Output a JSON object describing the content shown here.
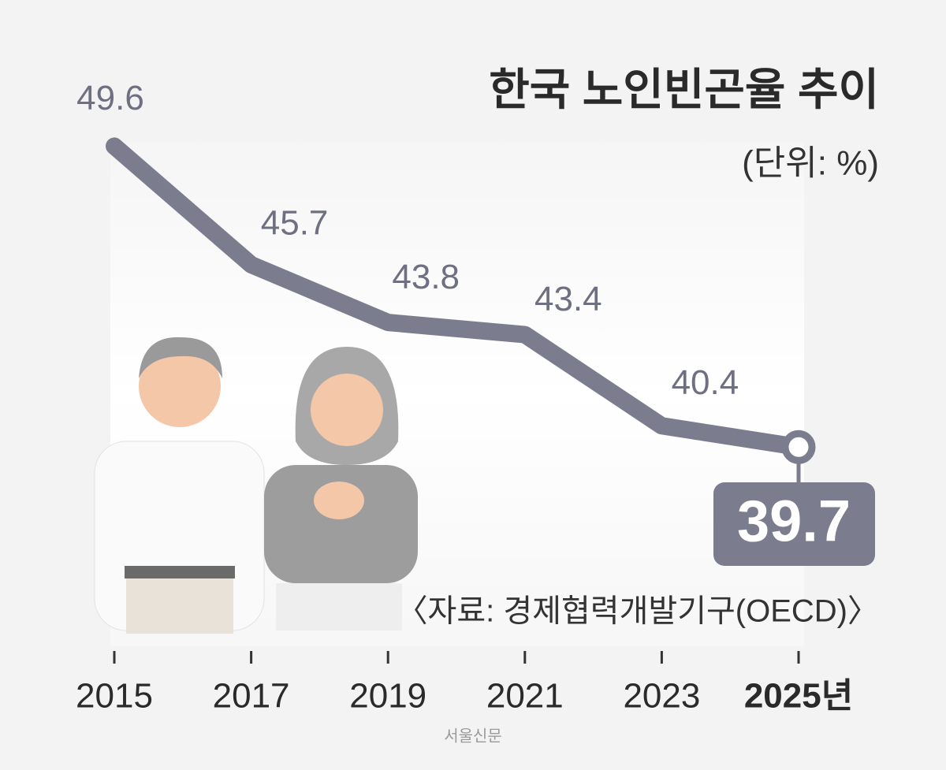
{
  "chart_data": {
    "type": "line",
    "title": "한국 노인빈곤율 추이",
    "subtitle": "(단위: %)",
    "categories": [
      "2015",
      "2017",
      "2019",
      "2021",
      "2023",
      "2025년"
    ],
    "values": [
      49.6,
      45.7,
      43.8,
      43.4,
      40.4,
      39.7
    ],
    "color": "#7c7c8f",
    "ylim": [
      36,
      50
    ],
    "source": "〈자료: 경제협력개발기구(OECD)〉",
    "credit": "서울신문"
  }
}
